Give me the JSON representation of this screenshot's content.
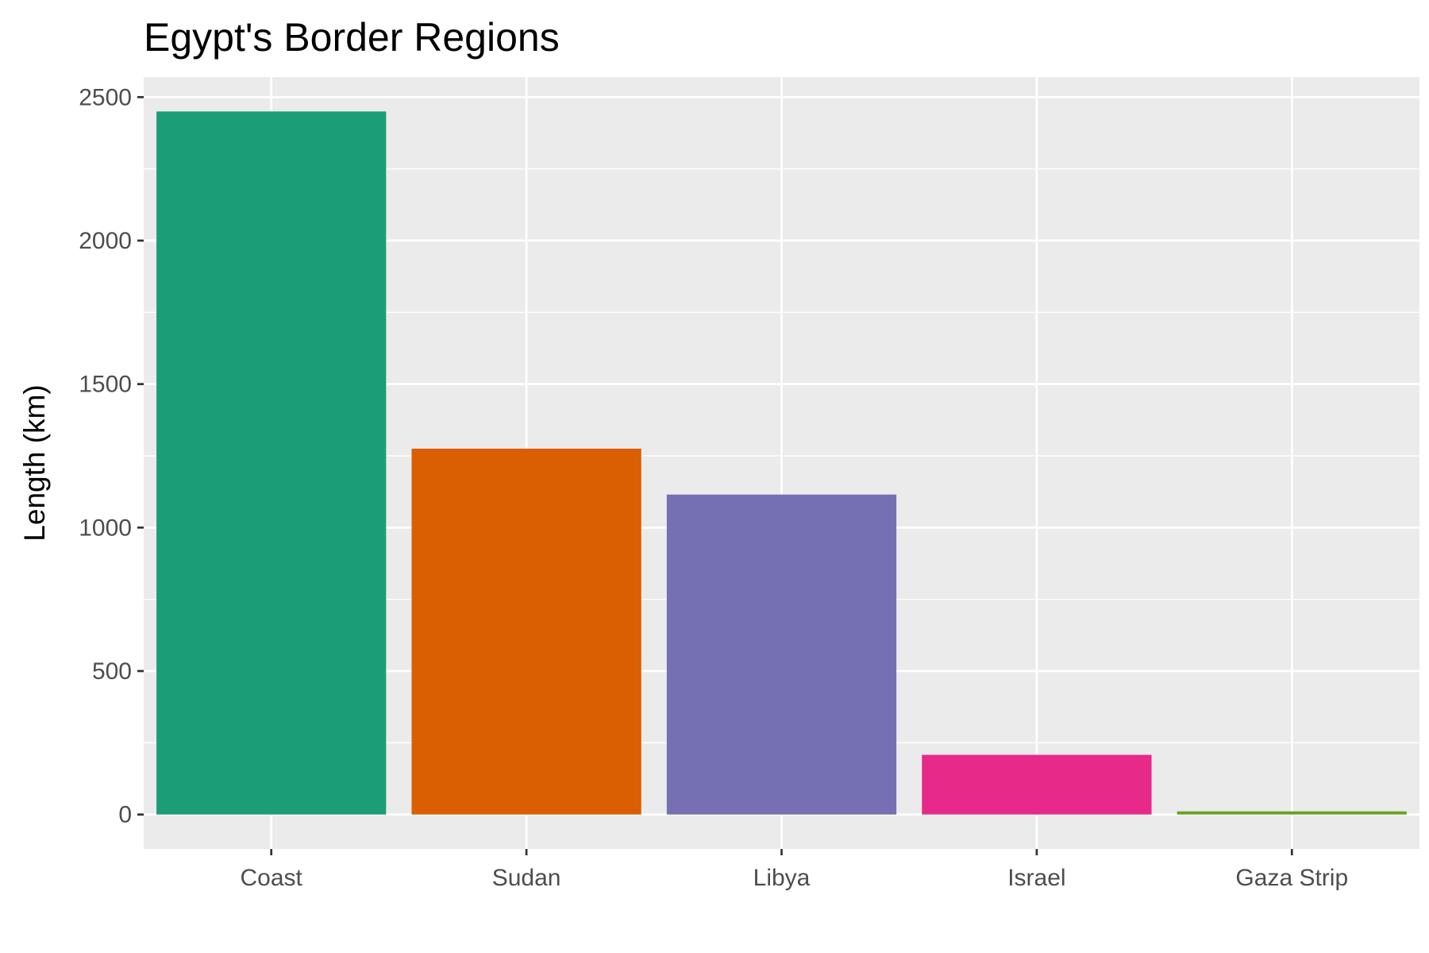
{
  "chart_data": {
    "type": "bar",
    "title": "Egypt's Border Regions",
    "xlabel": "",
    "ylabel": "Length (km)",
    "categories": [
      "Coast",
      "Sudan",
      "Libya",
      "Israel",
      "Gaza Strip"
    ],
    "values": [
      2450,
      1275,
      1115,
      208,
      11
    ],
    "colors": [
      "#1b9e77",
      "#d95f02",
      "#7570b3",
      "#e7298a",
      "#66a61e"
    ],
    "ylim": [
      -120,
      2570
    ],
    "yticks": [
      0,
      500,
      1000,
      1500,
      2000,
      2500
    ],
    "yticks_minor": [
      250,
      750,
      1250,
      1750,
      2250
    ],
    "grid": true,
    "legend": "none",
    "panel_background": "#ebebeb",
    "gridline_color": "#ffffff"
  }
}
